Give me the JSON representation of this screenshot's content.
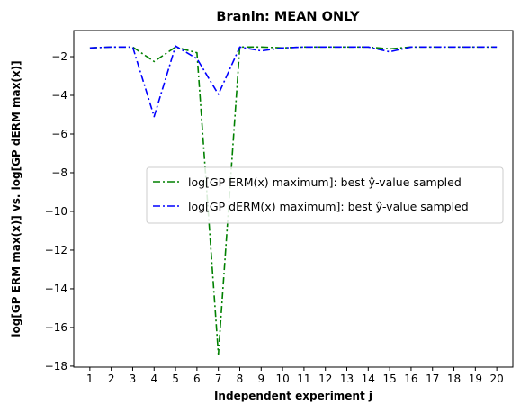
{
  "chart_data": {
    "type": "line",
    "title": "Branin: MEAN ONLY",
    "xlabel": "Independent experiment j",
    "ylabel": "log[GP ERM max(x)] vs. log[GP dERM max(x)]",
    "x": [
      1,
      2,
      3,
      4,
      5,
      6,
      7,
      8,
      9,
      10,
      11,
      12,
      13,
      14,
      15,
      16,
      17,
      18,
      19,
      20
    ],
    "xlim": [
      0.25,
      20.75
    ],
    "ylim": [
      -18.05,
      -0.65
    ],
    "yticks": [
      -2,
      -4,
      -6,
      -8,
      -10,
      -12,
      -14,
      -16,
      -18
    ],
    "grid": false,
    "legend_position": "center-right",
    "series": [
      {
        "name": "log[GP ERM(x) maximum]: best ŷ-value sampled",
        "color": "#008000",
        "linestyle": "dashdot",
        "values": [
          -1.55,
          -1.5,
          -1.5,
          -2.25,
          -1.5,
          -1.8,
          -17.4,
          -1.5,
          -1.5,
          -1.55,
          -1.5,
          -1.5,
          -1.5,
          -1.5,
          -1.6,
          -1.5,
          -1.5,
          -1.5,
          -1.5,
          -1.5
        ]
      },
      {
        "name": "log[GP dERM(x) maximum]: best ŷ-value sampled",
        "color": "#0000ff",
        "linestyle": "dashdot",
        "values": [
          -1.55,
          -1.5,
          -1.5,
          -5.1,
          -1.45,
          -2.1,
          -3.95,
          -1.5,
          -1.7,
          -1.55,
          -1.5,
          -1.5,
          -1.5,
          -1.5,
          -1.75,
          -1.5,
          -1.5,
          -1.5,
          -1.5,
          -1.5
        ]
      }
    ]
  }
}
